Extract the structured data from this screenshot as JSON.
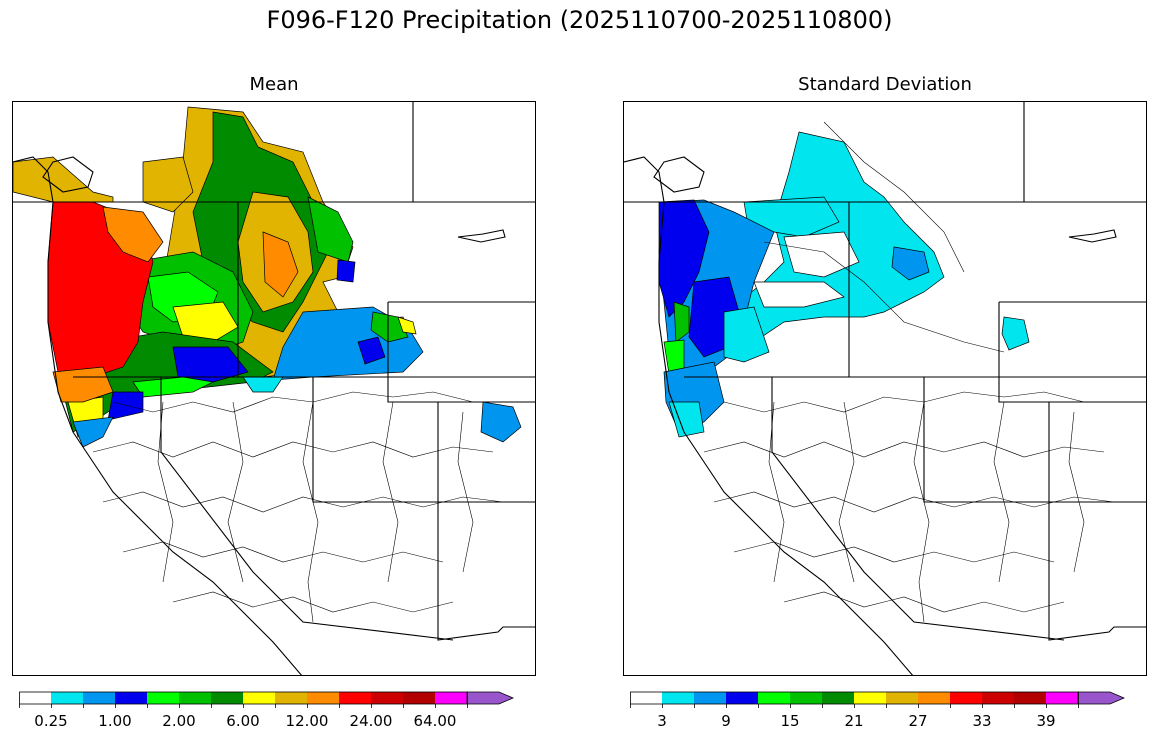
{
  "title": "F096-F120 Precipitation (2025110700-2025110800)",
  "panels": [
    {
      "id": "mean",
      "title": "Mean",
      "colorbar": {
        "colors": [
          "#ffffff",
          "#00e5ee",
          "#0096ef",
          "#0000ef",
          "#00ff00",
          "#00c000",
          "#008b00",
          "#ffff00",
          "#e0b400",
          "#ff8c00",
          "#ff0000",
          "#cc0000",
          "#b20000",
          "#ff00ff",
          "#9955cc"
        ],
        "tick_labels": [
          "0.25",
          "1.00",
          "2.00",
          "6.00",
          "12.00",
          "24.00",
          "64.00"
        ],
        "extend": "max"
      }
    },
    {
      "id": "stddev",
      "title": "Standard Deviation",
      "colorbar": {
        "colors": [
          "#ffffff",
          "#00e5ee",
          "#0096ef",
          "#0000ef",
          "#00ff00",
          "#00c000",
          "#008b00",
          "#ffff00",
          "#e0b400",
          "#ff8c00",
          "#ff0000",
          "#cc0000",
          "#b20000",
          "#ff00ff",
          "#9955cc"
        ],
        "tick_labels": [
          "3",
          "9",
          "15",
          "21",
          "27",
          "33",
          "39"
        ],
        "extend": "max"
      }
    }
  ]
}
